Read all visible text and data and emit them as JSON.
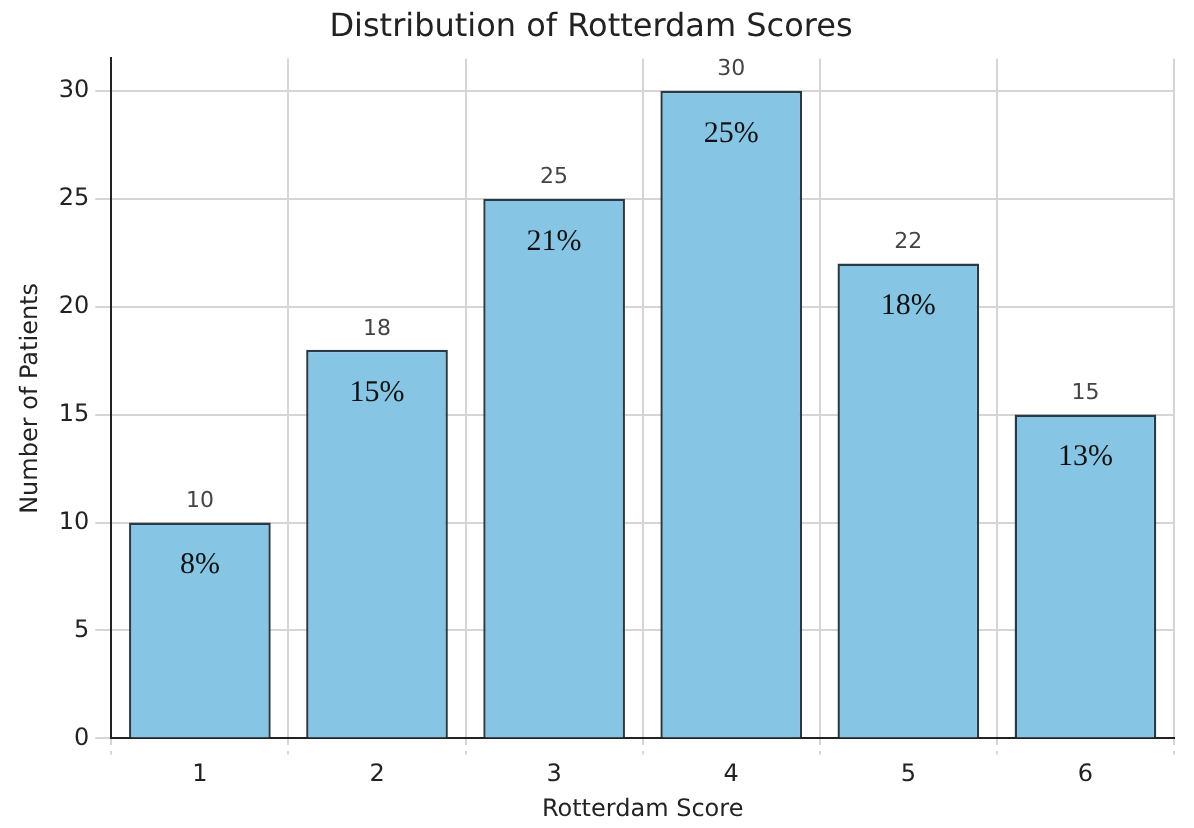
{
  "chart_data": {
    "type": "bar",
    "title": "Distribution of Rotterdam Scores",
    "xlabel": "Rotterdam Score",
    "ylabel": "Number of Patients",
    "categories": [
      "1",
      "2",
      "3",
      "4",
      "5",
      "6"
    ],
    "values": [
      10,
      18,
      25,
      30,
      22,
      15
    ],
    "color": "#87c5e4",
    "ylim": [
      0,
      31.5
    ],
    "yticks": [
      0,
      5,
      10,
      15,
      20,
      25,
      30
    ],
    "grid": true,
    "data_labels": true,
    "annotations": [
      {
        "text": "8%",
        "x": "1",
        "y": 10
      },
      {
        "text": "15%",
        "x": "2",
        "y": 18
      },
      {
        "text": "21%",
        "x": "3",
        "y": 25
      },
      {
        "text": "25%",
        "x": "4",
        "y": 30
      },
      {
        "text": "18%",
        "x": "5",
        "y": 22
      },
      {
        "text": "13%",
        "x": "6",
        "y": 15
      }
    ]
  }
}
